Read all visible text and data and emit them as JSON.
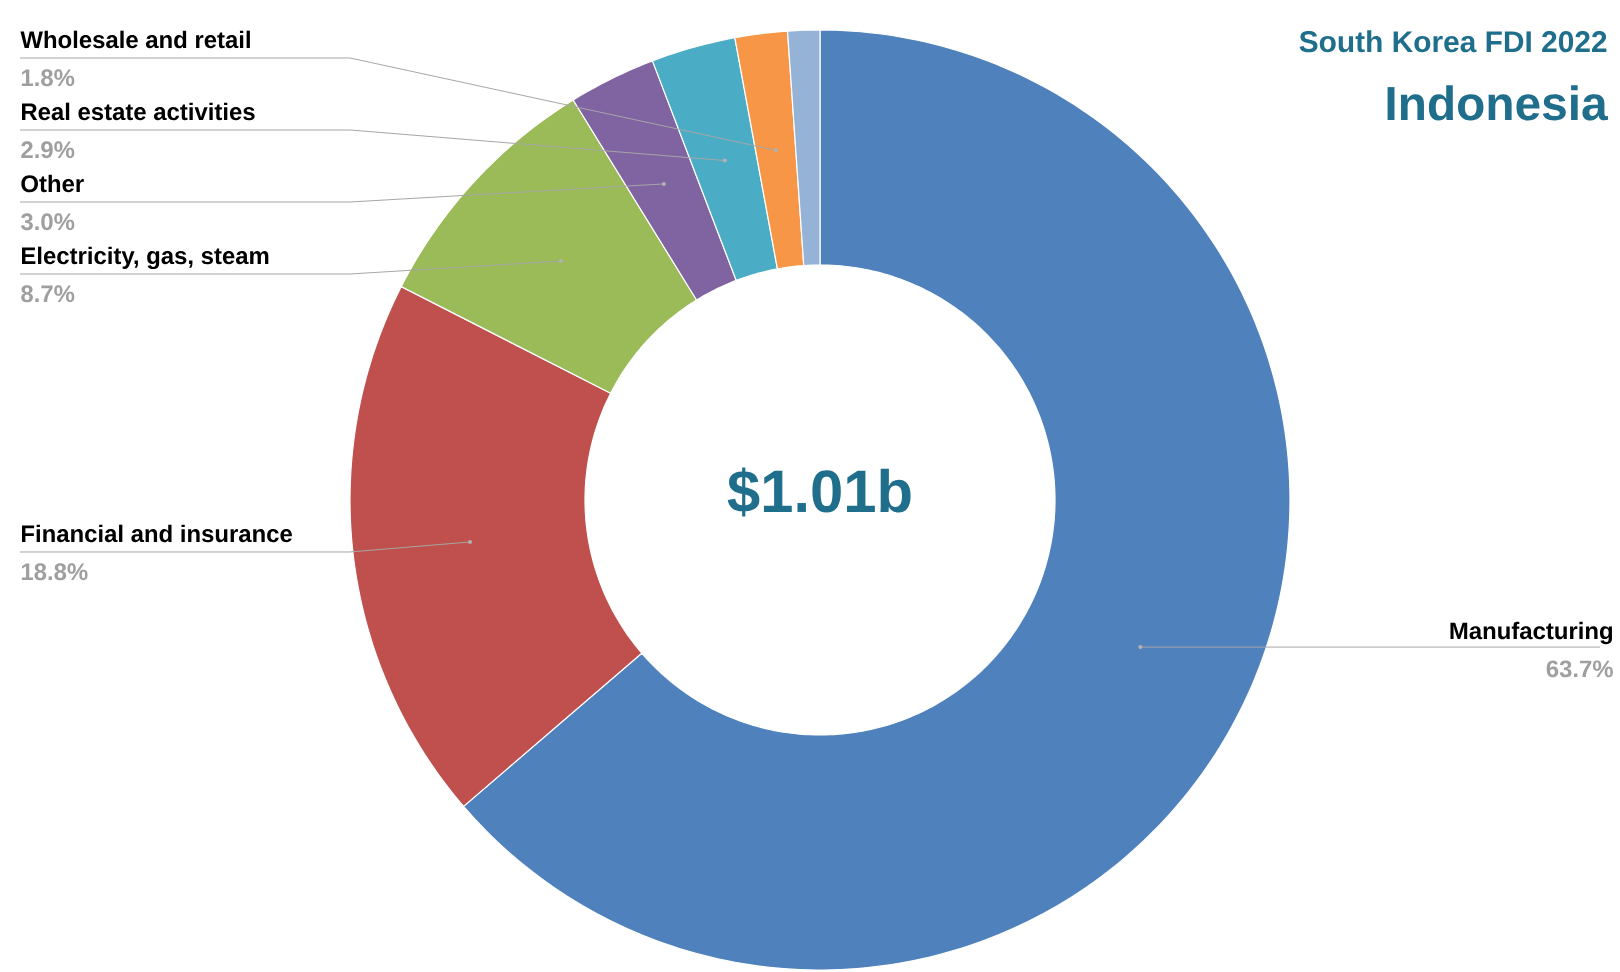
{
  "chart_data": {
    "type": "donut",
    "title": "Indonesia",
    "subtitle": "South Korea FDI 2022",
    "categories": [
      "Manufacturing",
      "Financial and insurance",
      "Electricity, gas, steam",
      "Other",
      "Real estate activities",
      "Wholesale and retail",
      null
    ],
    "values": [
      63.7,
      18.8,
      8.7,
      3.0,
      2.9,
      1.8,
      1.1
    ],
    "colors": [
      "#4f81bd",
      "#c0504d",
      "#9bbb59",
      "#8064a2",
      "#4bacc6",
      "#f79646",
      "#95b3d7"
    ],
    "value_labels": [
      "63.7%",
      "18.8%",
      "8.7%",
      "3.0%",
      "2.9%",
      "1.8%",
      null
    ],
    "annotations": [
      "$1.01b"
    ]
  }
}
